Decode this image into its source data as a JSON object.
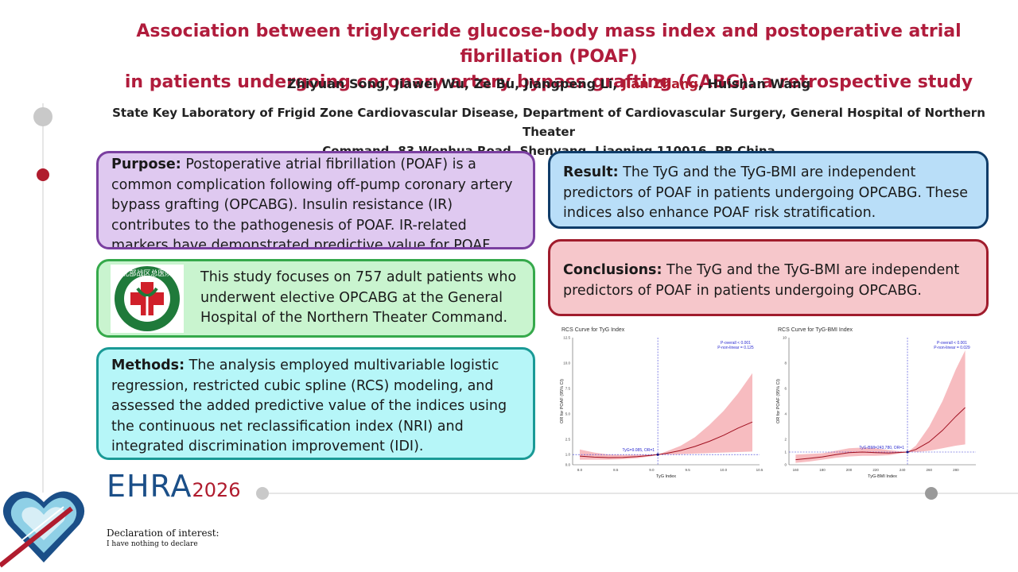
{
  "title": {
    "line1": "Association between triglyceride glucose-body mass index and postoperative atrial fibrillation (POAF)",
    "line2": "in patients undergoing coronary artery bypass grafting (CABG): a retrospective study"
  },
  "authors": {
    "before": "Zhiyuan Song, Jiawei Wu, Ze Bu, Jiangpeng Li,",
    "highlighted": "Jian Zhang",
    "after": ", Huishan Wang"
  },
  "affiliation": {
    "line1": "State Key Laboratory of Frigid Zone Cardiovascular Disease, Department of Cardiovascular Surgery, General Hospital of Northern Theater",
    "line2": "Command, 83 Wenhua Road, Shenyang, Liaoning 110016, PR China"
  },
  "purpose": {
    "label": "Purpose:",
    "text": "Postoperative atrial fibrillation (POAF) is a common complication following off-pump coronary artery bypass grafting (OPCABG). Insulin resistance (IR) contributes to the pathogenesis of POAF. IR-related markers have demonstrated predictive value for POAF."
  },
  "study": {
    "text": "This study focuses on 757 adult patients who underwent elective OPCABG at the General Hospital of the Northern Theater Command."
  },
  "methods": {
    "label": "Methods:",
    "text": "The analysis employed multivariable logistic regression, restricted cubic spline (RCS) modeling, and assessed the added predictive value of the indices using the continuous net reclassification index (NRI) and integrated discrimination improvement (IDI)."
  },
  "result": {
    "label": "Result:",
    "text": "The TyG and the TyG-BMI are independent predictors of POAF in patients undergoing OPCABG. These indices also enhance POAF risk stratification."
  },
  "conclusions": {
    "label": "Conclusions:",
    "text": "The TyG and the TyG-BMI are independent predictors of POAF in patients undergoing OPCABG."
  },
  "logo": {
    "icon": "hospital-cross-emblem-icon",
    "text": "北部战区总医院",
    "border_color": "#1f7a3a",
    "cross_color": "#d0202a"
  },
  "branding": {
    "ehra": "EHRA",
    "year": "2026"
  },
  "declaration": {
    "title": "Declaration of interest:",
    "text": "I have nothing to declare"
  },
  "colors": {
    "title": "#b01c3c",
    "highlight": "#b01c2e",
    "ehra": "#1b4f88"
  },
  "chart_data": [
    {
      "type": "line",
      "title": "RCS Curve for TyG Index",
      "xlabel": "TyG Index",
      "ylabel": "OR for POAF (95% CI)",
      "xlim": [
        7.9,
        10.5
      ],
      "ylim": [
        0,
        12.5
      ],
      "xticks": [
        "8.0",
        "8.5",
        "9.0",
        "9.5",
        "10.0",
        "10.5"
      ],
      "xtick_values": [
        8.0,
        8.5,
        9.0,
        9.5,
        10.0,
        10.5
      ],
      "yticks": [
        "0.0",
        "1.0",
        "2.5",
        "5.0",
        "7.5",
        "10.0",
        "12.5"
      ],
      "ytick_values": [
        0,
        1,
        2.5,
        5,
        7.5,
        10,
        12.5
      ],
      "annotation_p_overall": "P-overall < 0.001",
      "annotation_p_nonlinear": "P-non-linear = 0.125",
      "reference_label": "TyG=9.085, OR=1",
      "reference_x": 9.085,
      "reference_y": 1,
      "series": [
        {
          "x": [
            8.0,
            8.2,
            8.4,
            8.6,
            8.8,
            9.0,
            9.085,
            9.2,
            9.4,
            9.6,
            9.8,
            10.0,
            10.2,
            10.4
          ],
          "values": [
            0.85,
            0.75,
            0.7,
            0.72,
            0.8,
            0.93,
            1.0,
            1.12,
            1.4,
            1.8,
            2.3,
            2.9,
            3.6,
            4.2
          ],
          "lower": [
            0.5,
            0.5,
            0.5,
            0.55,
            0.65,
            0.85,
            1.0,
            1.0,
            1.05,
            1.1,
            1.15,
            1.2,
            1.25,
            1.3
          ],
          "upper": [
            1.5,
            1.2,
            1.0,
            0.95,
            0.98,
            1.0,
            1.0,
            1.3,
            1.85,
            2.7,
            3.9,
            5.3,
            7.0,
            9.0
          ]
        }
      ]
    },
    {
      "type": "line",
      "title": "RCS Curve for TyG-BMI Index",
      "xlabel": "TyG-BMI Index",
      "ylabel": "OR for POAF (95% CI)",
      "xlim": [
        155,
        295
      ],
      "ylim": [
        0,
        10
      ],
      "xticks": [
        "160",
        "180",
        "200",
        "220",
        "240",
        "260",
        "280"
      ],
      "xtick_values": [
        160,
        180,
        200,
        220,
        240,
        260,
        280
      ],
      "yticks": [
        "0",
        "1",
        "2",
        "4",
        "6",
        "8",
        "10"
      ],
      "ytick_values": [
        0,
        1,
        2,
        4,
        6,
        8,
        10
      ],
      "annotation_p_overall": "P-overall < 0.001",
      "annotation_p_nonlinear": "P-non-linear = 0.029",
      "reference_label": "TyG-BMI=243.780, OR=1",
      "reference_x": 243.78,
      "reference_y": 1,
      "series": [
        {
          "x": [
            160,
            170,
            180,
            190,
            200,
            210,
            220,
            230,
            243.78,
            250,
            260,
            270,
            280,
            287
          ],
          "values": [
            0.4,
            0.5,
            0.62,
            0.8,
            0.95,
            1.0,
            0.95,
            0.92,
            1.0,
            1.2,
            1.8,
            2.7,
            3.8,
            4.5
          ],
          "lower": [
            0.15,
            0.25,
            0.4,
            0.55,
            0.65,
            0.7,
            0.7,
            0.75,
            1.0,
            1.0,
            1.1,
            1.3,
            1.5,
            1.6
          ],
          "upper": [
            0.8,
            0.85,
            0.9,
            1.1,
            1.3,
            1.35,
            1.3,
            1.15,
            1.0,
            1.5,
            3.0,
            5.0,
            7.5,
            9.0
          ]
        }
      ]
    }
  ]
}
